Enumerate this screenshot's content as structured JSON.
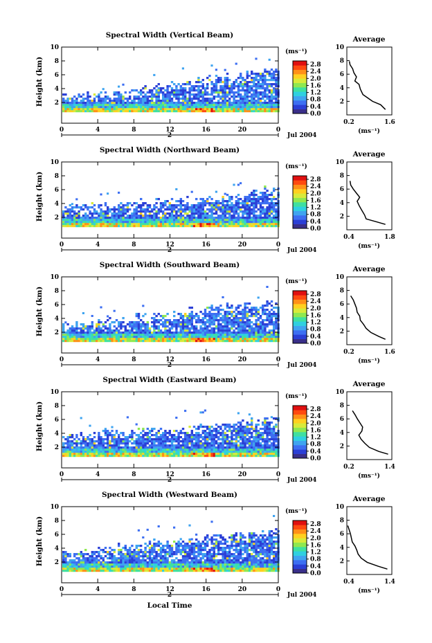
{
  "figure": {
    "xaxis_label": "Local Time"
  },
  "colorbar": {
    "unit_label": "(ms⁻¹)",
    "ticks": [
      "2.8",
      "2.4",
      "2.0",
      "1.6",
      "1.2",
      "0.8",
      "0.4",
      "0.0"
    ],
    "range": [
      0.0,
      3.0
    ],
    "colors": [
      "#3a2f8a",
      "#2b3fd6",
      "#3d6ff2",
      "#3fa4f0",
      "#2fd0e0",
      "#3fe0a0",
      "#8fe850",
      "#d8ea3a",
      "#ffd020",
      "#ff9018",
      "#ff4a10",
      "#e01010"
    ]
  },
  "panels": [
    {
      "title": "Spectral Width (Vertical Beam)",
      "ylabel": "Height (km)",
      "yticks": [
        "10",
        "8",
        "6",
        "4",
        "2"
      ],
      "xticks": [
        "0",
        "4",
        "8",
        "12",
        "16",
        "20",
        "0"
      ],
      "day_marker": "2",
      "date_label": "Jul 2004",
      "avg": {
        "title": "Average",
        "yticks": [
          "10",
          "8",
          "6",
          "4",
          "2"
        ],
        "xticks": [
          "0.2",
          "1.6"
        ],
        "xlabel": "(ms⁻¹)",
        "xlim": [
          0.2,
          1.6
        ],
        "profile": [
          [
            1.4,
            0.8
          ],
          [
            1.25,
            1.5
          ],
          [
            1.0,
            2.0
          ],
          [
            0.85,
            2.5
          ],
          [
            0.7,
            3.0
          ],
          [
            0.62,
            3.8
          ],
          [
            0.58,
            4.5
          ],
          [
            0.45,
            5.0
          ],
          [
            0.5,
            5.6
          ],
          [
            0.42,
            6.2
          ],
          [
            0.38,
            6.8
          ],
          [
            0.3,
            7.4
          ],
          [
            0.28,
            7.9
          ]
        ]
      }
    },
    {
      "title": "Spectral Width (Northward Beam)",
      "ylabel": "Height (km)",
      "yticks": [
        "10",
        "8",
        "6",
        "4",
        "2"
      ],
      "xticks": [
        "0",
        "4",
        "8",
        "12",
        "16",
        "20",
        "0"
      ],
      "day_marker": "2",
      "date_label": "Jul 2004",
      "avg": {
        "title": "Average",
        "yticks": [
          "10",
          "8",
          "6",
          "4",
          "2"
        ],
        "xticks": [
          "0.4",
          "1.8"
        ],
        "xlabel": "(ms⁻¹)",
        "xlim": [
          0.4,
          1.8
        ],
        "profile": [
          [
            1.6,
            0.8
          ],
          [
            1.3,
            1.2
          ],
          [
            1.0,
            1.6
          ],
          [
            0.95,
            2.2
          ],
          [
            0.85,
            3.0
          ],
          [
            0.78,
            3.6
          ],
          [
            0.72,
            4.2
          ],
          [
            0.8,
            4.8
          ],
          [
            0.7,
            5.4
          ],
          [
            0.6,
            6.0
          ],
          [
            0.52,
            6.6
          ],
          [
            0.5,
            7.2
          ]
        ]
      }
    },
    {
      "title": "Spectral Width (Southward Beam)",
      "ylabel": "Height (km)",
      "yticks": [
        "10",
        "8",
        "6",
        "4",
        "2"
      ],
      "xticks": [
        "0",
        "4",
        "8",
        "12",
        "16",
        "20",
        "0"
      ],
      "day_marker": "2",
      "date_label": "Jul 2004",
      "avg": {
        "title": "Average",
        "yticks": [
          "10",
          "8",
          "6",
          "4",
          "2"
        ],
        "xticks": [
          "0.2",
          "1.6"
        ],
        "xlabel": "(ms⁻¹)",
        "xlim": [
          0.2,
          1.6
        ],
        "profile": [
          [
            1.4,
            0.8
          ],
          [
            1.2,
            1.2
          ],
          [
            0.95,
            1.8
          ],
          [
            0.8,
            2.4
          ],
          [
            0.72,
            3.0
          ],
          [
            0.62,
            3.6
          ],
          [
            0.6,
            4.2
          ],
          [
            0.52,
            4.8
          ],
          [
            0.5,
            5.4
          ],
          [
            0.45,
            6.0
          ],
          [
            0.4,
            6.6
          ],
          [
            0.32,
            7.2
          ]
        ]
      }
    },
    {
      "title": "Spectral Width (Eastward Beam)",
      "ylabel": "Height (km)",
      "yticks": [
        "10",
        "8",
        "6",
        "4",
        "2"
      ],
      "xticks": [
        "0",
        "4",
        "8",
        "12",
        "16",
        "20",
        "0"
      ],
      "day_marker": "2",
      "date_label": "Jul 2004",
      "avg": {
        "title": "Average",
        "yticks": [
          "10",
          "8",
          "6",
          "4",
          "2"
        ],
        "xticks": [
          "0.2",
          "1.4"
        ],
        "xlabel": "(ms⁻¹)",
        "xlim": [
          0.2,
          1.4
        ],
        "profile": [
          [
            1.3,
            0.8
          ],
          [
            1.05,
            1.2
          ],
          [
            0.8,
            1.8
          ],
          [
            0.68,
            2.4
          ],
          [
            0.58,
            3.0
          ],
          [
            0.52,
            3.6
          ],
          [
            0.6,
            4.2
          ],
          [
            0.62,
            4.8
          ],
          [
            0.55,
            5.4
          ],
          [
            0.48,
            6.0
          ],
          [
            0.42,
            6.6
          ],
          [
            0.35,
            7.2
          ]
        ]
      }
    },
    {
      "title": "Spectral Width (Westward Beam)",
      "ylabel": "Height (km)",
      "yticks": [
        "10",
        "8",
        "6",
        "4",
        "2"
      ],
      "xticks": [
        "0",
        "4",
        "8",
        "12",
        "16",
        "20",
        "0"
      ],
      "day_marker": "2",
      "date_label": "Jul 2004",
      "avg": {
        "title": "Average",
        "yticks": [
          "10",
          "8",
          "6",
          "4",
          "2"
        ],
        "xticks": [
          "0.4",
          "1.4"
        ],
        "xlabel": "(ms⁻¹)",
        "xlim": [
          0.4,
          1.4
        ],
        "profile": [
          [
            1.3,
            0.8
          ],
          [
            1.1,
            1.2
          ],
          [
            0.85,
            1.8
          ],
          [
            0.72,
            2.4
          ],
          [
            0.65,
            3.0
          ],
          [
            0.62,
            3.6
          ],
          [
            0.58,
            4.2
          ],
          [
            0.52,
            4.8
          ],
          [
            0.5,
            5.4
          ],
          [
            0.48,
            6.0
          ],
          [
            0.45,
            6.6
          ],
          [
            0.42,
            7.2
          ]
        ]
      }
    }
  ],
  "chart_data": {
    "type": "heatmap",
    "x_range": [
      0,
      24
    ],
    "y_range": [
      0,
      10
    ],
    "value_range": [
      0.0,
      3.0
    ],
    "panels": [
      {
        "title": "Spectral Width (Vertical Beam)",
        "top_height_km": [
          3.0,
          3.2,
          3.5,
          3.8,
          4.0,
          4.4,
          4.8,
          5.2,
          5.5,
          5.8,
          6.2,
          6.5
        ]
      },
      {
        "title": "Spectral Width (Northward Beam)",
        "top_height_km": [
          3.5,
          3.6,
          3.8,
          4.0,
          4.2,
          4.5,
          4.6,
          4.4,
          4.8,
          5.0,
          5.4,
          6.0
        ]
      },
      {
        "title": "Spectral Width (Southward Beam)",
        "top_height_km": [
          3.0,
          3.2,
          3.6,
          4.0,
          4.3,
          4.6,
          4.8,
          5.2,
          5.6,
          5.8,
          6.0,
          6.2
        ]
      },
      {
        "title": "Spectral Width (Eastward Beam)",
        "top_height_km": [
          3.6,
          3.8,
          4.0,
          4.2,
          4.4,
          4.6,
          4.8,
          5.0,
          5.2,
          5.4,
          5.8,
          6.0
        ]
      },
      {
        "title": "Spectral Width (Westward Beam)",
        "top_height_km": [
          3.4,
          3.6,
          4.0,
          4.3,
          4.6,
          4.8,
          5.0,
          5.2,
          5.6,
          5.9,
          6.2,
          6.5
        ]
      }
    ]
  }
}
